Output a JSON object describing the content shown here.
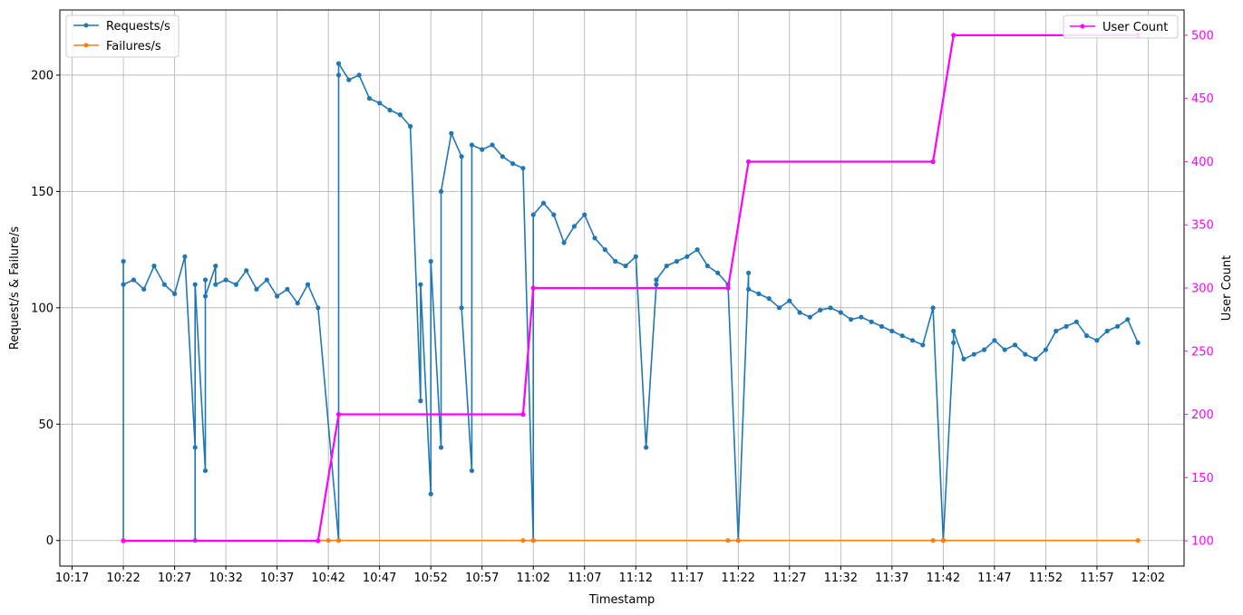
{
  "chart_data": {
    "type": "line",
    "xlabel": "Timestamp",
    "ylabel": "Request/s & Failure/s",
    "y2label": "User Count",
    "x_ticks": [
      "10:17",
      "10:22",
      "10:27",
      "10:32",
      "10:37",
      "10:42",
      "10:47",
      "10:52",
      "10:57",
      "11:02",
      "11:07",
      "11:12",
      "11:17",
      "11:22",
      "11:27",
      "11:32",
      "11:37",
      "11:42",
      "11:47",
      "11:52",
      "11:57",
      "12:02"
    ],
    "x_range_minutes": [
      615.8,
      725.5
    ],
    "y_ticks": [
      0,
      50,
      100,
      150,
      200
    ],
    "ylim": [
      -11,
      228
    ],
    "y2_ticks": [
      100,
      150,
      200,
      250,
      300,
      350,
      400,
      450,
      500
    ],
    "y2lim": [
      80,
      520
    ],
    "grid": true,
    "legend_left": [
      {
        "name": "Requests/s",
        "color": "#1f77b4"
      },
      {
        "name": "Failures/s",
        "color": "#ff7f0e"
      }
    ],
    "legend_right": [
      {
        "name": "User Count",
        "color": "#ff00ff"
      }
    ],
    "series": [
      {
        "name": "Requests/s",
        "axis": "left",
        "color": "#1f77b4",
        "x": [
          "10:22",
          "10:22",
          "10:22",
          "10:23",
          "10:24",
          "10:25",
          "10:26",
          "10:27",
          "10:28",
          "10:29",
          "10:29",
          "10:29",
          "10:30",
          "10:30",
          "10:30",
          "10:31",
          "10:31",
          "10:32",
          "10:33",
          "10:34",
          "10:35",
          "10:36",
          "10:37",
          "10:38",
          "10:39",
          "10:40",
          "10:41",
          "10:43",
          "10:43",
          "10:43",
          "10:44",
          "10:45",
          "10:46",
          "10:47",
          "10:48",
          "10:49",
          "10:50",
          "10:51",
          "10:51",
          "10:52",
          "10:52",
          "10:53",
          "10:53",
          "10:54",
          "10:55",
          "10:55",
          "10:56",
          "10:56",
          "10:57",
          "10:58",
          "10:59",
          "11:00",
          "11:01",
          "11:02",
          "11:02",
          "11:03",
          "11:04",
          "11:05",
          "11:06",
          "11:07",
          "11:08",
          "11:09",
          "11:10",
          "11:11",
          "11:12",
          "11:13",
          "11:14",
          "11:14",
          "11:15",
          "11:16",
          "11:17",
          "11:18",
          "11:19",
          "11:20",
          "11:21",
          "11:22",
          "11:23",
          "11:23",
          "11:24",
          "11:25",
          "11:26",
          "11:27",
          "11:28",
          "11:29",
          "11:30",
          "11:31",
          "11:32",
          "11:33",
          "11:34",
          "11:35",
          "11:36",
          "11:37",
          "11:38",
          "11:39",
          "11:40",
          "11:41",
          "11:42",
          "11:43",
          "11:43",
          "11:44",
          "11:45",
          "11:46",
          "11:47",
          "11:48",
          "11:49",
          "11:50",
          "11:51",
          "11:52",
          "11:53",
          "11:54",
          "11:55",
          "11:56",
          "11:57",
          "11:58",
          "11:59",
          "12:00",
          "12:01"
        ],
        "values": [
          0,
          120,
          110,
          112,
          108,
          118,
          110,
          106,
          122,
          40,
          0,
          110,
          30,
          112,
          105,
          118,
          110,
          112,
          110,
          116,
          108,
          112,
          105,
          108,
          102,
          110,
          100,
          0,
          200,
          205,
          198,
          200,
          190,
          188,
          185,
          183,
          178,
          60,
          110,
          20,
          120,
          40,
          150,
          175,
          165,
          100,
          30,
          170,
          168,
          170,
          165,
          162,
          160,
          0,
          140,
          145,
          140,
          128,
          135,
          140,
          130,
          125,
          120,
          118,
          122,
          40,
          110,
          112,
          118,
          120,
          122,
          125,
          118,
          115,
          110,
          0,
          115,
          108,
          106,
          104,
          100,
          103,
          98,
          96,
          99,
          100,
          98,
          95,
          96,
          94,
          92,
          90,
          88,
          86,
          84,
          100,
          0,
          85,
          90,
          78,
          80,
          82,
          86,
          82,
          84,
          80,
          78,
          82,
          90,
          92,
          94,
          88,
          86,
          90,
          92,
          95,
          85
        ]
      },
      {
        "name": "Failures/s",
        "axis": "left",
        "color": "#ff7f0e",
        "x": [
          "10:22",
          "10:42",
          "10:43",
          "11:01",
          "11:02",
          "11:21",
          "11:22",
          "11:41",
          "11:42",
          "12:01"
        ],
        "values": [
          0,
          0,
          0,
          0,
          0,
          0,
          0,
          0,
          0,
          0
        ]
      },
      {
        "name": "User Count",
        "axis": "right",
        "color": "#ff00ff",
        "x": [
          "10:22",
          "10:41",
          "10:43",
          "11:01",
          "11:02",
          "11:21",
          "11:23",
          "11:41",
          "11:43",
          "12:01"
        ],
        "values": [
          100,
          100,
          200,
          200,
          300,
          300,
          400,
          400,
          500,
          500
        ]
      }
    ]
  }
}
